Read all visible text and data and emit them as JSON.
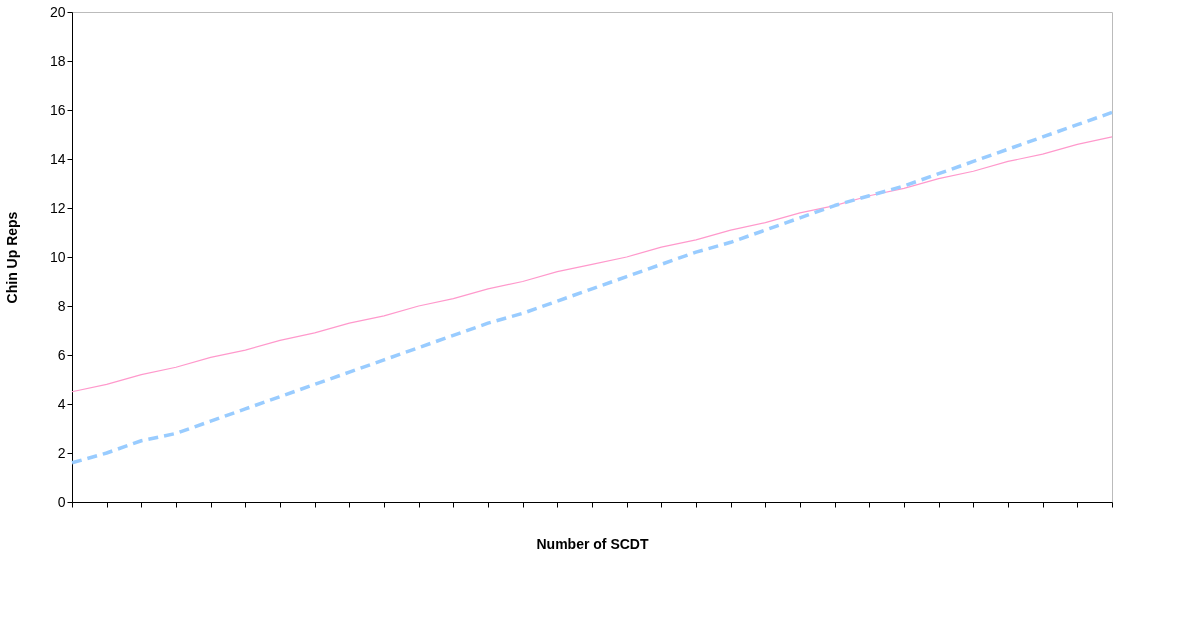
{
  "chart_data": {
    "type": "line",
    "xlabel": "Number of SCDT",
    "ylabel": "Chin Up Reps",
    "categories": [
      null,
      null,
      null,
      null,
      null,
      null,
      null,
      null,
      null,
      null,
      null,
      null,
      null,
      null,
      null,
      null,
      null,
      null,
      null,
      null,
      null,
      null,
      null,
      null,
      null,
      null,
      null,
      null,
      null,
      null,
      null
    ],
    "series": [
      {
        "color": "#ff99cc",
        "line_style": "solid",
        "values": [
          4.5,
          4.8,
          5.2,
          5.5,
          5.9,
          6.2,
          6.6,
          6.9,
          7.3,
          7.6,
          8.0,
          8.3,
          8.7,
          9.0,
          9.4,
          9.7,
          10.0,
          10.4,
          10.7,
          11.1,
          11.4,
          11.8,
          12.1,
          12.5,
          12.8,
          13.2,
          13.5,
          13.9,
          14.2,
          14.6,
          14.9
        ]
      },
      {
        "color": "#99ccff",
        "line_style": "dashed",
        "values": [
          1.6,
          2.0,
          2.5,
          2.8,
          3.3,
          3.8,
          4.3,
          4.8,
          5.3,
          5.8,
          6.3,
          6.8,
          7.3,
          7.7,
          8.2,
          8.7,
          9.2,
          9.7,
          10.2,
          10.6,
          11.1,
          11.6,
          12.1,
          12.5,
          12.9,
          13.4,
          13.9,
          14.4,
          14.9,
          15.4,
          15.9
        ]
      }
    ],
    "ylim": [
      0,
      20
    ],
    "yticks": [
      0,
      2,
      4,
      6,
      8,
      10,
      12,
      14,
      16,
      18,
      20
    ],
    "grid": false,
    "marker": "none",
    "tick_labels": "y"
  }
}
